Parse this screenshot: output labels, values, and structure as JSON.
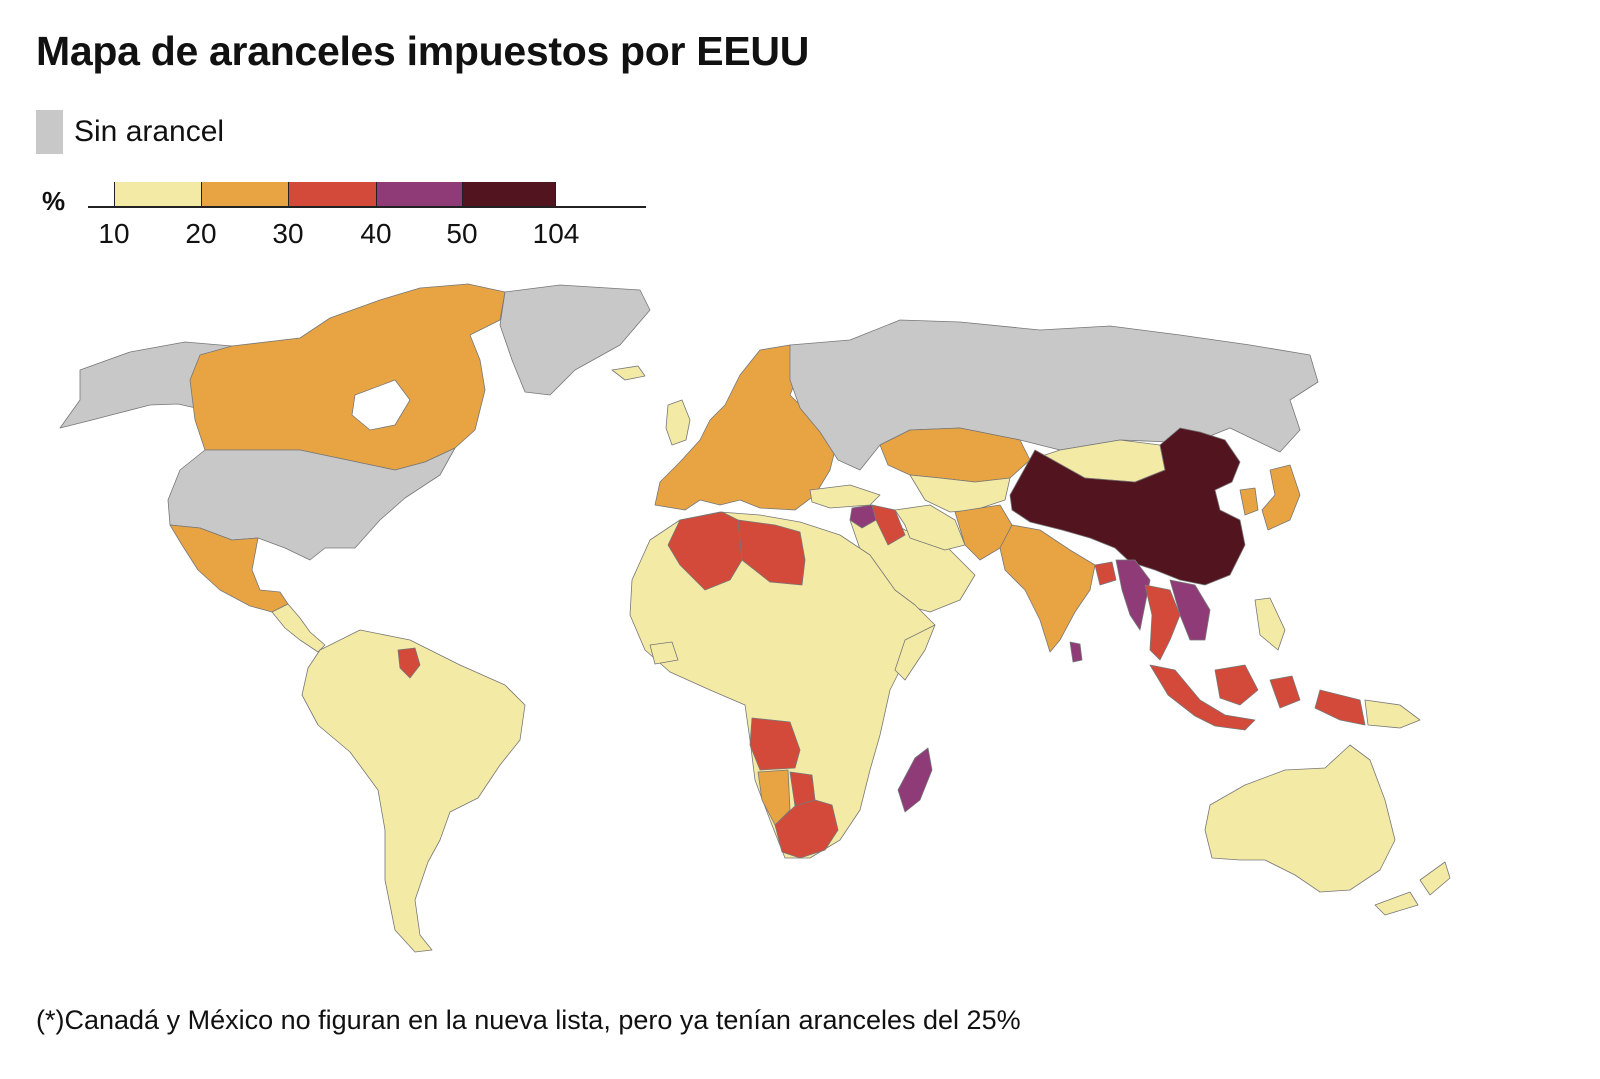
{
  "title": "Mapa de aranceles impuestos por EEUU",
  "legend": {
    "no_tariff_label": "Sin arancel",
    "no_tariff_color": "#c8c8c8",
    "unit_label": "%",
    "bins": [
      {
        "from": 10,
        "to": 20,
        "color": "#f3eaa5"
      },
      {
        "from": 20,
        "to": 30,
        "color": "#e8a443"
      },
      {
        "from": 30,
        "to": 40,
        "color": "#d44a3a"
      },
      {
        "from": 40,
        "to": 50,
        "color": "#8e3b78"
      },
      {
        "from": 50,
        "to": 104,
        "color": "#521520"
      }
    ],
    "tick_labels": [
      "10",
      "20",
      "30",
      "40",
      "50",
      "104"
    ]
  },
  "regions": [
    {
      "name": "Canadá",
      "tariff_band": "20-30",
      "color": "#e8a443"
    },
    {
      "name": "EEUU",
      "tariff_band": "none",
      "color": "#c8c8c8"
    },
    {
      "name": "México",
      "tariff_band": "20-30",
      "color": "#e8a443"
    },
    {
      "name": "Groenlandia",
      "tariff_band": "none",
      "color": "#c8c8c8"
    },
    {
      "name": "Rusia",
      "tariff_band": "none",
      "color": "#c8c8c8"
    },
    {
      "name": "Europa",
      "tariff_band": "20-30",
      "color": "#e8a443"
    },
    {
      "name": "Sudamérica",
      "tariff_band": "10-20",
      "color": "#f3eaa5"
    },
    {
      "name": "África",
      "tariff_band": "10-20",
      "color": "#f3eaa5"
    },
    {
      "name": "Argelia",
      "tariff_band": "30-40",
      "color": "#d44a3a"
    },
    {
      "name": "Libia",
      "tariff_band": "30-40",
      "color": "#d44a3a"
    },
    {
      "name": "Angola",
      "tariff_band": "30-40",
      "color": "#d44a3a"
    },
    {
      "name": "Namibia",
      "tariff_band": "20-30",
      "color": "#e8a443"
    },
    {
      "name": "Botsuana",
      "tariff_band": "30-40",
      "color": "#d44a3a"
    },
    {
      "name": "Sudáfrica",
      "tariff_band": "30-40",
      "color": "#d44a3a"
    },
    {
      "name": "Madagascar",
      "tariff_band": "40-50",
      "color": "#8e3b78"
    },
    {
      "name": "Oriente Medio",
      "tariff_band": "10-20",
      "color": "#f3eaa5"
    },
    {
      "name": "Siria",
      "tariff_band": "40-50",
      "color": "#8e3b78"
    },
    {
      "name": "Irak",
      "tariff_band": "30-40",
      "color": "#d44a3a"
    },
    {
      "name": "Kazajistán",
      "tariff_band": "20-30",
      "color": "#e8a443"
    },
    {
      "name": "Asia Central",
      "tariff_band": "10-20",
      "color": "#f3eaa5"
    },
    {
      "name": "Mongolia",
      "tariff_band": "10-20",
      "color": "#f3eaa5"
    },
    {
      "name": "China",
      "tariff_band": "50-104",
      "color": "#521520"
    },
    {
      "name": "India",
      "tariff_band": "20-30",
      "color": "#e8a443"
    },
    {
      "name": "Pakistán",
      "tariff_band": "20-30",
      "color": "#e8a443"
    },
    {
      "name": "Bangladés",
      "tariff_band": "30-40",
      "color": "#d44a3a"
    },
    {
      "name": "Myanmar",
      "tariff_band": "40-50",
      "color": "#8e3b78"
    },
    {
      "name": "Tailandia",
      "tariff_band": "30-40",
      "color": "#d44a3a"
    },
    {
      "name": "Vietnam",
      "tariff_band": "40-50",
      "color": "#8e3b78"
    },
    {
      "name": "Camboya",
      "tariff_band": "40-50",
      "color": "#8e3b78"
    },
    {
      "name": "Sri Lanka",
      "tariff_band": "40-50",
      "color": "#8e3b78"
    },
    {
      "name": "Indonesia",
      "tariff_band": "30-40",
      "color": "#d44a3a"
    },
    {
      "name": "Japón",
      "tariff_band": "20-30",
      "color": "#e8a443"
    },
    {
      "name": "Corea del Sur",
      "tariff_band": "20-30",
      "color": "#e8a443"
    },
    {
      "name": "Australia",
      "tariff_band": "10-20",
      "color": "#f3eaa5"
    },
    {
      "name": "Nueva Zelanda",
      "tariff_band": "10-20",
      "color": "#f3eaa5"
    },
    {
      "name": "Guyana",
      "tariff_band": "30-40",
      "color": "#d44a3a"
    }
  ],
  "footnote": "(*)Canadá y México no figuran en la nueva lista, pero ya tenían aranceles del 25%"
}
